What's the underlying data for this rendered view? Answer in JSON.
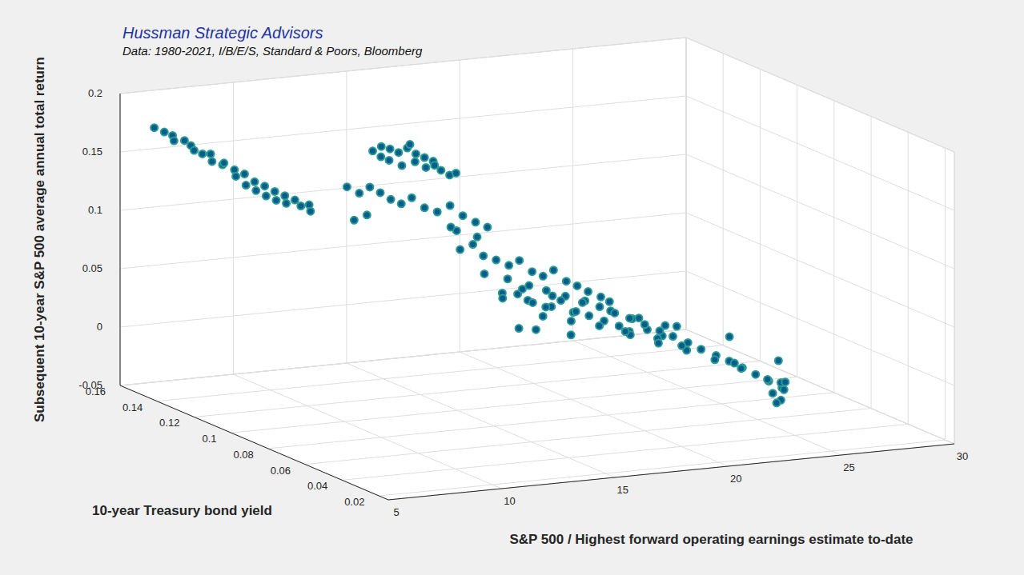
{
  "chart_data": {
    "type": "scatter",
    "title": "Hussman Strategic Advisors",
    "subtitle": "Data: 1980-2021, I/B/E/S, Standard & Poors, Bloomberg",
    "x_label": "S&P 500 / Highest forward operating earnings estimate to-date",
    "y_label": "10-year Treasury bond yield",
    "z_label": "Subsequent 10-year S&P 500 average annual total return",
    "color": "#0b5a92",
    "marker": "circle",
    "grid": true,
    "xlim": [
      5,
      30
    ],
    "xticks": [
      5,
      10,
      15,
      20,
      25,
      30
    ],
    "ylim": [
      0.015,
      0.16
    ],
    "yticks": [
      0.02,
      0.04,
      0.06,
      0.08,
      0.1,
      0.12,
      0.14,
      0.16
    ],
    "zlim": [
      -0.05,
      0.2
    ],
    "zticks": [
      -0.05,
      0,
      0.05,
      0.1,
      0.15,
      0.2
    ],
    "x": [
      6.1,
      6.3,
      6.5,
      6.4,
      6.7,
      6.9,
      6.8,
      7.0,
      7.2,
      7.1,
      7.4,
      7.3,
      7.6,
      7.5,
      7.8,
      7.7,
      8.0,
      7.9,
      8.2,
      8.1,
      8.4,
      8.3,
      8.6,
      8.5,
      8.8,
      8.9,
      9.1,
      9.0,
      10.6,
      10.9,
      11.2,
      11.5,
      11.8,
      12.1,
      12.4,
      12.7,
      11.0,
      11.4,
      11.9,
      12.3,
      12.8,
      13.1,
      10.8,
      12.0,
      12.6,
      13.3,
      10.2,
      10.5,
      10.8,
      11.1,
      11.4,
      11.7,
      12.0,
      12.4,
      12.8,
      13.2,
      13.6,
      14.0,
      13.0,
      12.5,
      13.5,
      14.2,
      11.0,
      10.6,
      13.4,
      13.8,
      14.1,
      14.5,
      14.9,
      15.2,
      15.6,
      16.0,
      16.3,
      16.7,
      17.1,
      17.5,
      17.9,
      18.2,
      13.9,
      14.6,
      15.3,
      15.9,
      16.5,
      17.2,
      14.2,
      15.0,
      15.8,
      16.6,
      12.5,
      13.0,
      13.5,
      14.0,
      14.5,
      15.0,
      15.5,
      16.0,
      16.5,
      17.0,
      17.5,
      18.0,
      14.2,
      15.2,
      16.2,
      17.2,
      18.2,
      13.8,
      14.8,
      15.8,
      16.8,
      17.8,
      12.8,
      13.3,
      14.3,
      15.6,
      18.5,
      19.0,
      19.5,
      20.0,
      20.5,
      21.0,
      21.5,
      22.0,
      22.5,
      23.0,
      23.5,
      24.0,
      24.5,
      25.0,
      25.5,
      25.2,
      19.2,
      20.2,
      21.2,
      22.2,
      23.2,
      24.2,
      25.2,
      25.0,
      19.8,
      21.8,
      23.8,
      25.8,
      25.5,
      20.6,
      22.6,
      24.6
    ],
    "y": [
      0.155,
      0.152,
      0.15,
      0.148,
      0.146,
      0.145,
      0.142,
      0.14,
      0.138,
      0.136,
      0.134,
      0.132,
      0.13,
      0.128,
      0.127,
      0.125,
      0.124,
      0.122,
      0.121,
      0.119,
      0.118,
      0.116,
      0.115,
      0.113,
      0.112,
      0.11,
      0.108,
      0.106,
      0.092,
      0.091,
      0.09,
      0.089,
      0.088,
      0.087,
      0.086,
      0.085,
      0.088,
      0.086,
      0.085,
      0.084,
      0.082,
      0.081,
      0.09,
      0.089,
      0.083,
      0.08,
      0.101,
      0.098,
      0.096,
      0.094,
      0.092,
      0.09,
      0.088,
      0.086,
      0.084,
      0.082,
      0.08,
      0.078,
      0.076,
      0.073,
      0.071,
      0.074,
      0.1,
      0.102,
      0.079,
      0.077,
      0.075,
      0.073,
      0.071,
      0.069,
      0.067,
      0.066,
      0.064,
      0.062,
      0.061,
      0.06,
      0.058,
      0.057,
      0.072,
      0.068,
      0.065,
      0.063,
      0.06,
      0.058,
      0.066,
      0.062,
      0.059,
      0.057,
      0.045,
      0.043,
      0.041,
      0.04,
      0.038,
      0.036,
      0.035,
      0.033,
      0.031,
      0.03,
      0.028,
      0.026,
      0.044,
      0.041,
      0.038,
      0.034,
      0.031,
      0.034,
      0.03,
      0.027,
      0.024,
      0.022,
      0.038,
      0.046,
      0.049,
      0.046,
      0.066,
      0.064,
      0.062,
      0.06,
      0.058,
      0.057,
      0.055,
      0.054,
      0.052,
      0.051,
      0.05,
      0.049,
      0.048,
      0.047,
      0.052,
      0.05,
      0.058,
      0.055,
      0.052,
      0.049,
      0.047,
      0.045,
      0.05,
      0.052,
      0.068,
      0.062,
      0.058,
      0.055,
      0.056,
      0.05,
      0.046,
      0.044
    ],
    "z": [
      0.172,
      0.17,
      0.168,
      0.165,
      0.166,
      0.162,
      0.16,
      0.158,
      0.159,
      0.154,
      0.152,
      0.155,
      0.15,
      0.146,
      0.148,
      0.14,
      0.143,
      0.137,
      0.141,
      0.134,
      0.138,
      0.132,
      0.136,
      0.131,
      0.134,
      0.13,
      0.132,
      0.128,
      0.186,
      0.19,
      0.188,
      0.185,
      0.189,
      0.184,
      0.181,
      0.178,
      0.18,
      0.176,
      0.179,
      0.174,
      0.172,
      0.168,
      0.182,
      0.191,
      0.176,
      0.17,
      0.15,
      0.146,
      0.152,
      0.148,
      0.143,
      0.14,
      0.146,
      0.138,
      0.135,
      0.141,
      0.133,
      0.128,
      0.124,
      0.13,
      0.121,
      0.126,
      0.125,
      0.12,
      0.105,
      0.11,
      0.101,
      0.098,
      0.094,
      0.099,
      0.09,
      0.086,
      0.092,
      0.083,
      0.079,
      0.074,
      0.07,
      0.066,
      0.088,
      0.085,
      0.08,
      0.076,
      0.072,
      0.068,
      0.075,
      0.07,
      0.065,
      0.06,
      0.088,
      0.092,
      0.085,
      0.081,
      0.087,
      0.078,
      0.074,
      0.07,
      0.066,
      0.072,
      0.063,
      0.058,
      0.07,
      0.066,
      0.062,
      0.058,
      0.052,
      0.095,
      0.09,
      0.083,
      0.077,
      0.07,
      0.1,
      0.06,
      0.055,
      0.05,
      0.055,
      0.05,
      0.046,
      0.041,
      0.036,
      0.031,
      0.026,
      0.02,
      0.015,
      0.01,
      0.004,
      -0.002,
      -0.008,
      -0.014,
      -0.02,
      -0.027,
      0.035,
      0.028,
      0.022,
      0.014,
      0.006,
      -0.004,
      -0.012,
      -0.022,
      0.03,
      0.018,
      0.002,
      -0.016,
      -0.034,
      0.045,
      0.035,
      0.012
    ]
  }
}
